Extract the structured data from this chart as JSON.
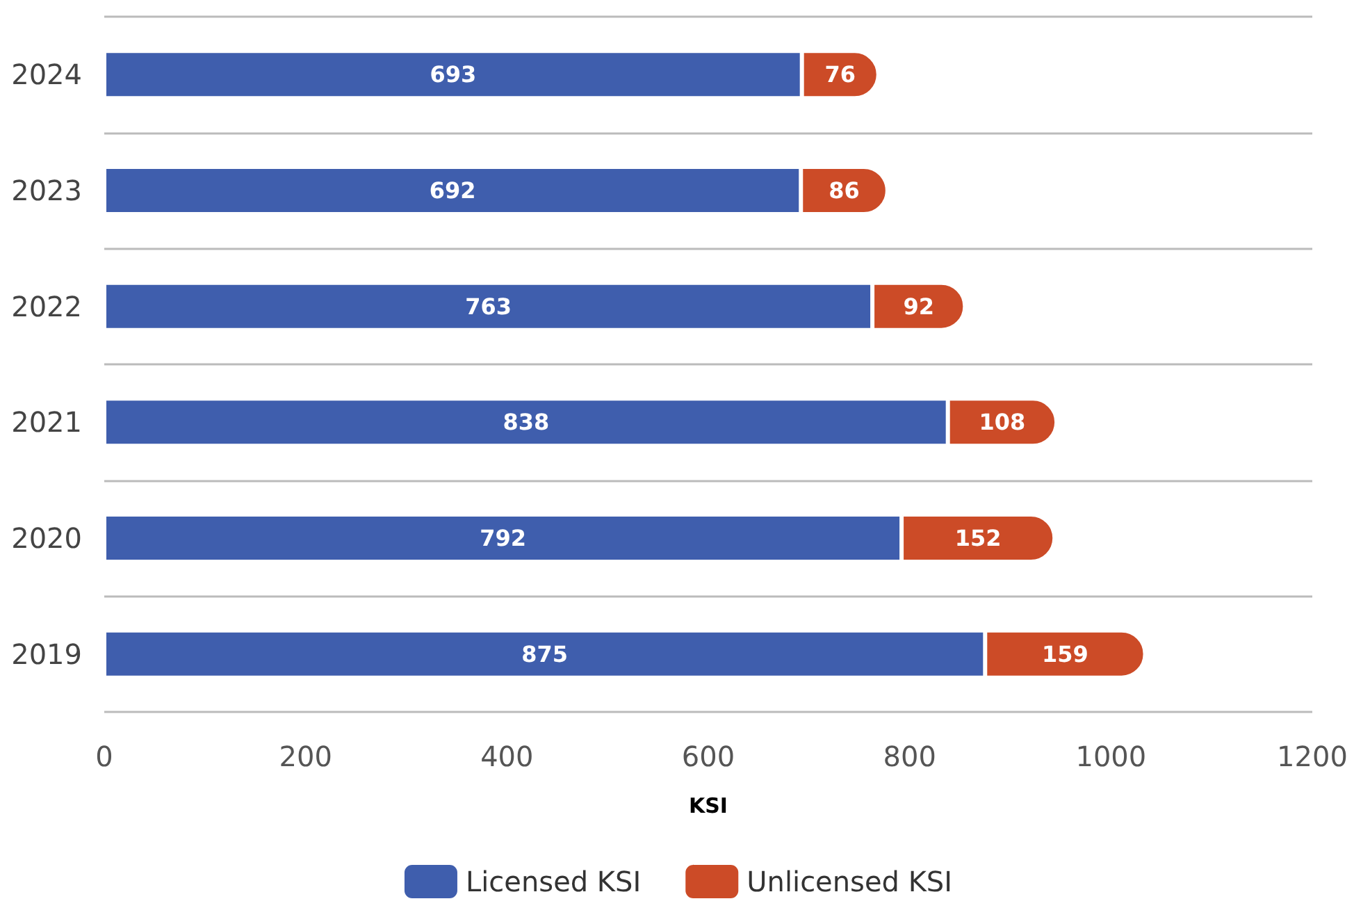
{
  "chart_data": {
    "type": "bar",
    "orientation": "horizontal",
    "stacked": true,
    "xlabel": "KSI",
    "categories": [
      "2024",
      "2023",
      "2022",
      "2021",
      "2020",
      "2019"
    ],
    "series": [
      {
        "name": "Licensed KSI",
        "color": "#3f5ead",
        "values": [
          693,
          692,
          763,
          838,
          792,
          875
        ]
      },
      {
        "name": "Unlicensed KSI",
        "color": "#cc4b27",
        "values": [
          76,
          86,
          92,
          108,
          152,
          159
        ]
      }
    ],
    "xlim": [
      0,
      1200
    ],
    "xticks": [
      0,
      200,
      400,
      600,
      800,
      1000,
      1200
    ],
    "grid": "y",
    "legend": "bottom",
    "data_labels": true
  }
}
